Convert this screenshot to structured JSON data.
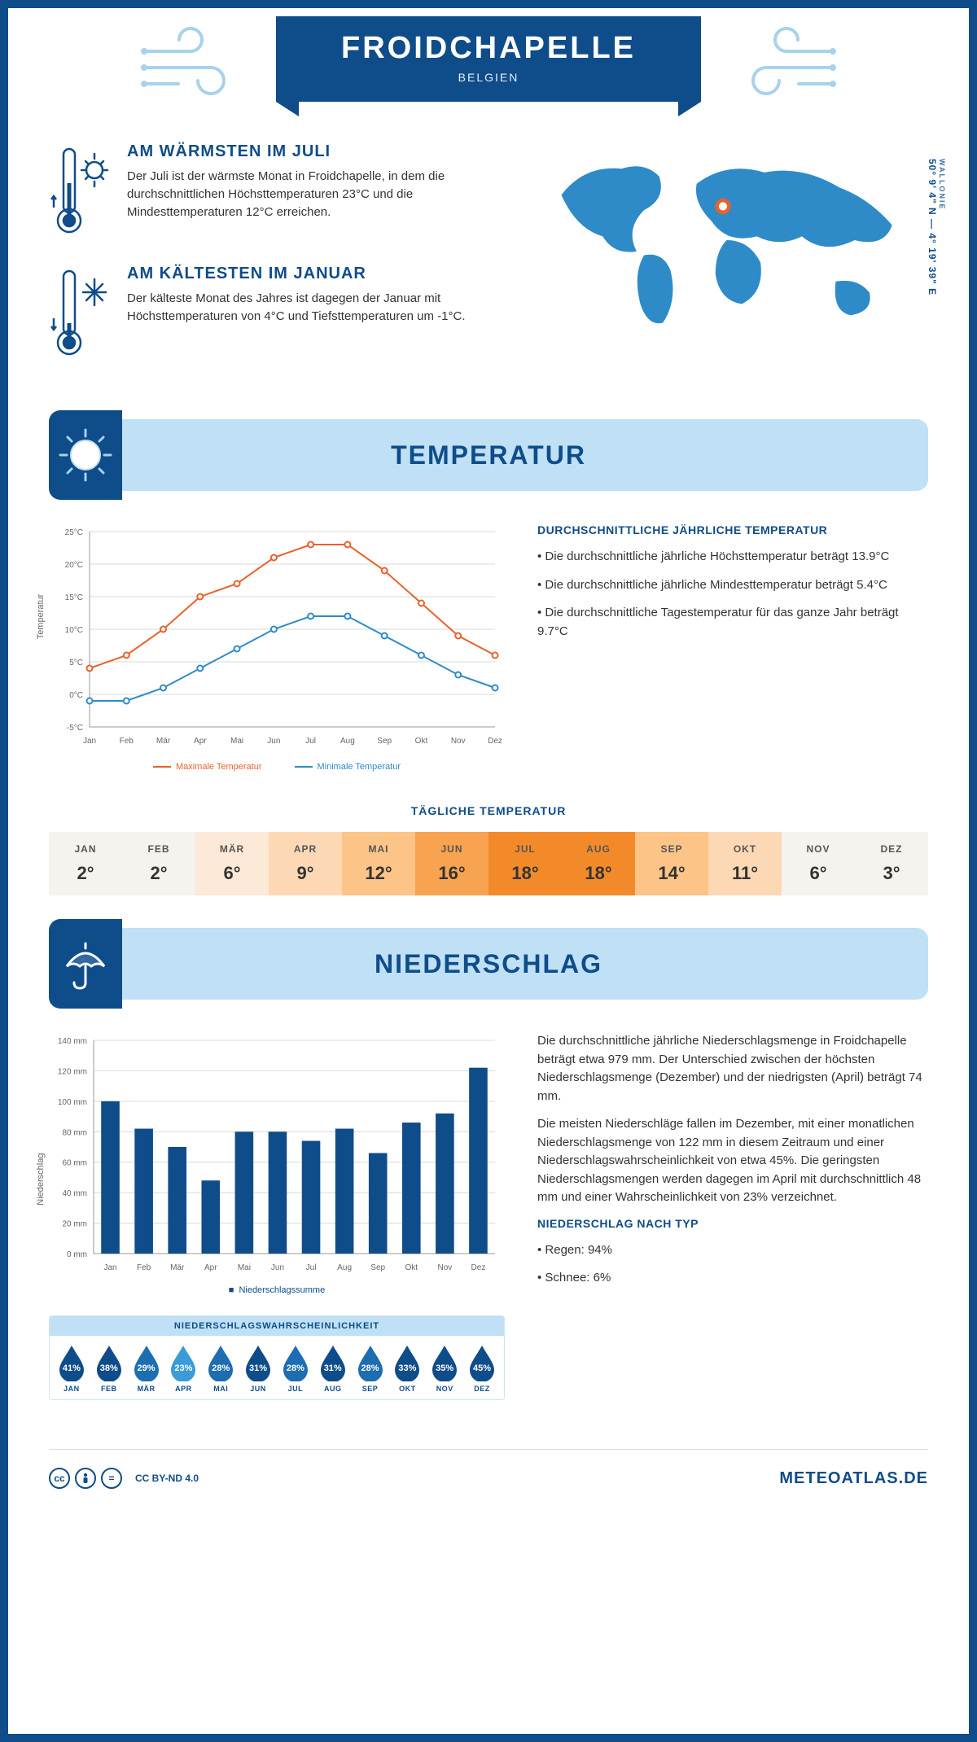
{
  "colors": {
    "primary": "#0f4c8a",
    "light": "#bfe0f5",
    "pale": "#a7d2ed",
    "orange": "#e8622c",
    "blue_line": "#2e8bc8",
    "grid": "#d9d9d9",
    "bg": "#ffffff"
  },
  "header": {
    "title": "FROIDCHAPELLE",
    "subtitle": "BELGIEN"
  },
  "coords": {
    "region": "WALLONIE",
    "text": "50° 9' 4\" N — 4° 19' 39\" E"
  },
  "warm": {
    "title": "AM WÄRMSTEN IM JULI",
    "text": "Der Juli ist der wärmste Monat in Froidchapelle, in dem die durchschnittlichen Höchsttemperaturen 23°C und die Mindesttemperaturen 12°C erreichen."
  },
  "cold": {
    "title": "AM KÄLTESTEN IM JANUAR",
    "text": "Der kälteste Monat des Jahres ist dagegen der Januar mit Höchsttemperaturen von 4°C und Tiefsttemperaturen um -1°C."
  },
  "section_temp": "TEMPERATUR",
  "section_precip": "NIEDERSCHLAG",
  "temp_chart": {
    "type": "line",
    "y_label": "Temperatur",
    "months": [
      "Jan",
      "Feb",
      "Mär",
      "Apr",
      "Mai",
      "Jun",
      "Jul",
      "Aug",
      "Sep",
      "Okt",
      "Nov",
      "Dez"
    ],
    "max_series": [
      4,
      6,
      10,
      15,
      17,
      21,
      23,
      23,
      19,
      14,
      9,
      6
    ],
    "min_series": [
      -1,
      -1,
      1,
      4,
      7,
      10,
      12,
      12,
      9,
      6,
      3,
      1
    ],
    "y_ticks": [
      -5,
      0,
      5,
      10,
      15,
      20,
      25
    ],
    "y_tick_labels": [
      "-5°C",
      "0°C",
      "5°C",
      "10°C",
      "15°C",
      "20°C",
      "25°C"
    ],
    "ylim": [
      -5,
      25
    ],
    "max_color": "#e8622c",
    "min_color": "#2e8bc8",
    "grid_color": "#d9d9d9",
    "line_width": 2,
    "marker": "circle",
    "legend_max": "Maximale Temperatur",
    "legend_min": "Minimale Temperatur"
  },
  "temp_info": {
    "heading": "DURCHSCHNITTLICHE JÄHRLICHE TEMPERATUR",
    "p1": "• Die durchschnittliche jährliche Höchsttemperatur beträgt 13.9°C",
    "p2": "• Die durchschnittliche jährliche Mindesttemperatur beträgt 5.4°C",
    "p3": "• Die durchschnittliche Tagestemperatur für das ganze Jahr beträgt 9.7°C"
  },
  "daily": {
    "title": "TÄGLICHE TEMPERATUR",
    "months": [
      "JAN",
      "FEB",
      "MÄR",
      "APR",
      "MAI",
      "JUN",
      "JUL",
      "AUG",
      "SEP",
      "OKT",
      "NOV",
      "DEZ"
    ],
    "values": [
      "2°",
      "2°",
      "6°",
      "9°",
      "12°",
      "16°",
      "18°",
      "18°",
      "14°",
      "11°",
      "6°",
      "3°"
    ],
    "bg_colors": [
      "#f6f3ee",
      "#f6f3ee",
      "#fce9d8",
      "#fcd9b4",
      "#fcc487",
      "#f7a34f",
      "#f28a2a",
      "#f28a2a",
      "#fcc487",
      "#fcd9b4",
      "#f6f3ee",
      "#f6f3ee"
    ]
  },
  "precip_chart": {
    "type": "bar",
    "y_label": "Niederschlag",
    "months": [
      "Jan",
      "Feb",
      "Mär",
      "Apr",
      "Mai",
      "Jun",
      "Jul",
      "Aug",
      "Sep",
      "Okt",
      "Nov",
      "Dez"
    ],
    "values": [
      100,
      82,
      70,
      48,
      80,
      80,
      74,
      82,
      66,
      86,
      92,
      122
    ],
    "y_ticks": [
      0,
      20,
      40,
      60,
      80,
      100,
      120,
      140
    ],
    "y_tick_labels": [
      "0 mm",
      "20 mm",
      "40 mm",
      "60 mm",
      "80 mm",
      "100 mm",
      "120 mm",
      "140 mm"
    ],
    "ylim": [
      0,
      140
    ],
    "bar_color": "#0f4c8a",
    "grid_color": "#d9d9d9",
    "bar_width": 0.55,
    "legend": "Niederschlagssumme"
  },
  "precip_text": {
    "p1": "Die durchschnittliche jährliche Niederschlagsmenge in Froidchapelle beträgt etwa 979 mm. Der Unterschied zwischen der höchsten Niederschlagsmenge (Dezember) und der niedrigsten (April) beträgt 74 mm.",
    "p2": "Die meisten Niederschläge fallen im Dezember, mit einer monatlichen Niederschlagsmenge von 122 mm in diesem Zeitraum und einer Niederschlagswahrscheinlichkeit von etwa 45%. Die geringsten Niederschlagsmengen werden dagegen im April mit durchschnittlich 48 mm und einer Wahrscheinlichkeit von 23% verzeichnet.",
    "type_heading": "NIEDERSCHLAG NACH TYP",
    "type1": "• Regen: 94%",
    "type2": "• Schnee: 6%"
  },
  "prob": {
    "title": "NIEDERSCHLAGSWAHRSCHEINLICHKEIT",
    "months": [
      "JAN",
      "FEB",
      "MÄR",
      "APR",
      "MAI",
      "JUN",
      "JUL",
      "AUG",
      "SEP",
      "OKT",
      "NOV",
      "DEZ"
    ],
    "values": [
      "41%",
      "38%",
      "29%",
      "23%",
      "28%",
      "31%",
      "28%",
      "31%",
      "28%",
      "33%",
      "35%",
      "45%"
    ],
    "drop_colors": [
      "#0f4c8a",
      "#0f4c8a",
      "#1d6db1",
      "#3a9bd8",
      "#1d6db1",
      "#0f4c8a",
      "#1d6db1",
      "#0f4c8a",
      "#1d6db1",
      "#0f4c8a",
      "#0f4c8a",
      "#0f4c8a"
    ]
  },
  "footer": {
    "license": "CC BY-ND 4.0",
    "brand": "METEOATLAS.DE"
  }
}
